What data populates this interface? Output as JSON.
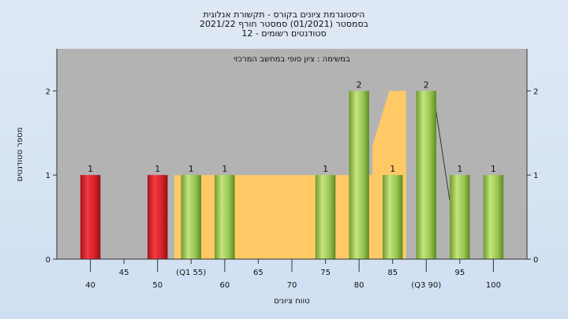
{
  "chart_data": {
    "type": "bar",
    "title_lines": [
      "היסטוגרמת ציונים בקורס - תקשורת אנלוגית",
      "בסמסטר  (01/2021)  סמסטר חורף  2021/22",
      "סטודנטים רשומים - 12"
    ],
    "annotation": "במשימה : ציון סופי במחשב המרכזי",
    "xlabel": "טווח ציונים",
    "ylabel": "מספר סטודנטים",
    "xlim": [
      35,
      105
    ],
    "ylim": [
      0,
      2.5
    ],
    "y_ticks": [
      0,
      1,
      2
    ],
    "x_ticks_upper": [
      "45",
      "55",
      "65",
      "75",
      "85",
      "95"
    ],
    "x_ticks_lower": [
      "40",
      "50",
      "60",
      "70",
      "80",
      "90",
      "100"
    ],
    "quartile_labels": [
      {
        "x": 55,
        "text": "(Q1 55)"
      },
      {
        "x": 90,
        "text": "(Q3 90)"
      }
    ],
    "bars": [
      {
        "x": 40,
        "value": 1,
        "label": "1",
        "color": "red"
      },
      {
        "x": 50,
        "value": 1,
        "label": "1",
        "color": "red"
      },
      {
        "x": 55,
        "value": 1,
        "label": "1",
        "color": "green"
      },
      {
        "x": 60,
        "value": 1,
        "label": "1",
        "color": "green"
      },
      {
        "x": 75,
        "value": 1,
        "label": "1",
        "color": "green"
      },
      {
        "x": 80,
        "value": 2,
        "label": "2",
        "color": "green"
      },
      {
        "x": 85,
        "value": 1,
        "label": "1",
        "color": "green"
      },
      {
        "x": 90,
        "value": 2,
        "label": "2",
        "color": "green"
      },
      {
        "x": 95,
        "value": 1,
        "label": "1",
        "color": "green"
      },
      {
        "x": 100,
        "value": 1,
        "label": "1",
        "color": "green"
      }
    ],
    "area": [
      [
        52.5,
        0
      ],
      [
        52.5,
        1
      ],
      [
        82,
        1
      ],
      [
        82,
        1.35
      ],
      [
        84.5,
        2
      ],
      [
        87,
        2
      ],
      [
        87,
        0
      ]
    ],
    "trend_line": [
      [
        91,
        2
      ],
      [
        93.5,
        0.7
      ]
    ],
    "grid": false,
    "colors": {
      "plot_bg": "#b3b3b3",
      "area": "#ffc966",
      "red": "#e3262b",
      "green": "#9ccc55"
    }
  }
}
